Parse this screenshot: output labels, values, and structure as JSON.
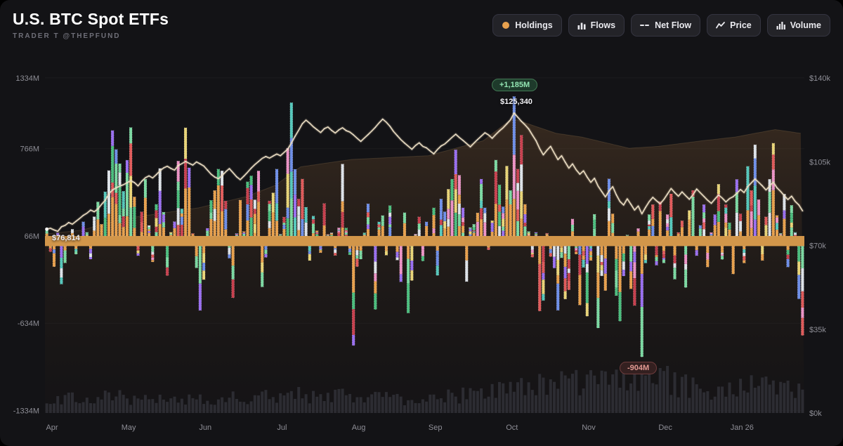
{
  "header": {
    "title": "U.S. BTC Spot ETFs",
    "subtitle": "TRADER T @THEPFUND"
  },
  "toolbar": {
    "buttons": [
      {
        "label": "Holdings",
        "icon": "holdings-dot-icon",
        "icon_color": "#E8A14E"
      },
      {
        "label": "Flows",
        "icon": "flows-bars-icon"
      },
      {
        "label": "Net Flow",
        "icon": "netflow-dash-icon"
      },
      {
        "label": "Price",
        "icon": "price-line-icon"
      },
      {
        "label": "Volume",
        "icon": "volume-bars-icon"
      }
    ]
  },
  "annotations": {
    "flow_max": "+1,185M",
    "price_peak": "$125,340",
    "price_start": "$76,814",
    "flow_min": "-904M"
  },
  "chart_data": {
    "type": "mixed",
    "title": "U.S. BTC Spot ETFs — daily net flows (stacked bars, $M), BTC price (line, $k), cumulative holdings (area), trading volume (bottom bars)",
    "x_ticks": [
      {
        "i": 0,
        "label": "Apr"
      },
      {
        "i": 21,
        "label": "May"
      },
      {
        "i": 42,
        "label": "Jun"
      },
      {
        "i": 63,
        "label": "Jul"
      },
      {
        "i": 84,
        "label": "Aug"
      },
      {
        "i": 105,
        "label": "Sep"
      },
      {
        "i": 126,
        "label": "Oct"
      },
      {
        "i": 147,
        "label": "Nov"
      },
      {
        "i": 168,
        "label": "Dec"
      },
      {
        "i": 189,
        "label": "Jan 26"
      }
    ],
    "y_left_ticks": [
      {
        "v": 1334,
        "label": "1334M"
      },
      {
        "v": 766,
        "label": "766M"
      },
      {
        "v": 66,
        "label": "66M"
      },
      {
        "v": -634,
        "label": "-634M"
      },
      {
        "v": -1334,
        "label": "-1334M"
      }
    ],
    "y_right_ticks": [
      {
        "v": 140,
        "label": "$140k"
      },
      {
        "v": 105,
        "label": "$105k"
      },
      {
        "v": 70,
        "label": "$70k"
      },
      {
        "v": 35,
        "label": "$35k"
      },
      {
        "v": 0,
        "label": "$0k"
      }
    ],
    "flow_max_musd": 1185,
    "flow_min_musd": -904,
    "price_peak_usd": 125340,
    "price_start_usd": 76814,
    "flows_musd": [
      110,
      -60,
      -180,
      90,
      -320,
      -150,
      40,
      120,
      -80,
      60,
      180,
      95,
      -120,
      220,
      340,
      160,
      420,
      591,
      912,
      760,
      646,
      425,
      674,
      936,
      380,
      -92,
      260,
      521,
      150,
      -142,
      320,
      608,
      257,
      -252,
      96,
      181,
      667,
      284,
      934,
      613,
      86,
      -190,
      -531,
      -284,
      128,
      352,
      431,
      602,
      589,
      347,
      -112,
      -430,
      86,
      354,
      102,
      501,
      548,
      356,
      588,
      -342,
      -105,
      347,
      412,
      602,
      80,
      218,
      770,
      1135,
      601,
      363,
      523,
      297,
      -131,
      226,
      108,
      -68,
      327,
      80,
      91,
      -90,
      131,
      643,
      130,
      -85,
      -812,
      -180,
      -120,
      91,
      324,
      65,
      -523,
      179,
      230,
      -88,
      310,
      65,
      -127,
      -301,
      253,
      -552,
      -291,
      81,
      219,
      -135,
      179,
      23,
      292,
      -250,
      363,
      260,
      441,
      522,
      757,
      553,
      292,
      -300,
      134,
      160,
      251,
      522,
      292,
      -45,
      189,
      675,
      476,
      300,
      627,
      431,
      1185,
      602,
      875,
      320,
      102,
      -104,
      95,
      -536,
      -451,
      88,
      -99,
      -191,
      -530,
      -109,
      -440,
      -366,
      202,
      -79,
      -488,
      -186,
      -577,
      -131,
      240,
      -672,
      -254,
      -372,
      524,
      244,
      -413,
      -617,
      -255,
      74,
      -358,
      -492,
      126,
      -904,
      -151,
      238,
      318,
      -168,
      342,
      -150,
      238,
      404,
      -281,
      94,
      188,
      -347,
      271,
      432,
      -92,
      151,
      318,
      -183,
      94,
      238,
      481,
      -122,
      318,
      172,
      -239,
      520,
      244,
      -151,
      625,
      431,
      798,
      358,
      -131,
      219,
      521,
      810,
      231,
      88,
      402,
      -183,
      312,
      95,
      -438,
      -731
    ],
    "price_kusd": [
      76.81,
      77.2,
      76.5,
      75.9,
      77.8,
      78.4,
      79.6,
      78.9,
      80.1,
      81.3,
      82.6,
      83.5,
      84.8,
      84.1,
      85.3,
      87.2,
      88.9,
      91.5,
      93.2,
      94.1,
      94.8,
      95.4,
      96.2,
      97.1,
      96.3,
      94.9,
      96.8,
      98.3,
      99.1,
      98.2,
      99.6,
      101.2,
      102.4,
      103.1,
      102.2,
      101.5,
      103.4,
      104.2,
      105.1,
      104.3,
      103.6,
      104.9,
      104.1,
      103.2,
      101.5,
      99.8,
      98.6,
      97.9,
      99.2,
      100.8,
      102.1,
      100.4,
      98.7,
      97.5,
      99.0,
      100.6,
      102.3,
      103.8,
      105.1,
      106.4,
      107.2,
      106.5,
      107.4,
      108.2,
      107.5,
      108.9,
      110.3,
      112.8,
      115.6,
      118.2,
      120.9,
      122.4,
      121.1,
      119.6,
      118.4,
      117.2,
      118.8,
      119.5,
      118.1,
      117.0,
      118.3,
      119.2,
      118.0,
      117.4,
      116.2,
      114.8,
      113.5,
      114.9,
      116.3,
      117.8,
      119.4,
      121.2,
      122.8,
      121.5,
      119.8,
      117.6,
      115.9,
      114.2,
      112.8,
      111.5,
      110.2,
      111.8,
      112.9,
      111.4,
      110.8,
      109.5,
      108.3,
      110.1,
      111.6,
      112.4,
      113.8,
      115.2,
      116.5,
      115.1,
      113.9,
      112.6,
      111.2,
      112.8,
      114.3,
      115.7,
      117.1,
      116.2,
      114.8,
      116.4,
      117.9,
      119.2,
      120.8,
      122.5,
      125.34,
      123.6,
      121.9,
      120.4,
      118.7,
      116.2,
      113.8,
      110.5,
      107.9,
      109.8,
      111.4,
      108.6,
      105.9,
      107.5,
      104.8,
      102.3,
      104.1,
      101.6,
      99.8,
      101.2,
      98.6,
      96.4,
      98.1,
      94.8,
      92.5,
      90.3,
      92.8,
      94.6,
      91.2,
      88.4,
      86.9,
      89.5,
      87.2,
      84.8,
      86.5,
      83.2,
      85.9,
      88.3,
      90.1,
      88.7,
      87.4,
      89.2,
      91.5,
      93.8,
      92.1,
      90.6,
      92.4,
      90.8,
      89.3,
      91.2,
      93.6,
      92.0,
      90.5,
      88.9,
      87.6,
      89.4,
      91.1,
      89.8,
      88.2,
      89.6,
      90.4,
      91.8,
      93.4,
      92.1,
      94.6,
      96.2,
      97.8,
      96.4,
      94.9,
      93.2,
      94.8,
      96.5,
      94.1,
      92.6,
      90.8,
      89.2,
      90.6,
      88.4,
      86.9,
      84.5
    ],
    "holdings_anchors": [
      [
        0,
        96
      ],
      [
        10,
        98
      ],
      [
        21,
        104
      ],
      [
        42,
        110
      ],
      [
        55,
        116
      ],
      [
        63,
        122
      ],
      [
        70,
        132
      ],
      [
        84,
        136
      ],
      [
        105,
        138
      ],
      [
        120,
        146
      ],
      [
        128,
        158
      ],
      [
        140,
        150
      ],
      [
        147,
        148
      ],
      [
        160,
        142
      ],
      [
        168,
        143
      ],
      [
        180,
        146
      ],
      [
        189,
        148
      ],
      [
        200,
        152
      ],
      [
        207,
        150
      ]
    ],
    "volume_anchors": [
      [
        0,
        30
      ],
      [
        15,
        38
      ],
      [
        30,
        26
      ],
      [
        45,
        30
      ],
      [
        60,
        34
      ],
      [
        75,
        40
      ],
      [
        90,
        32
      ],
      [
        105,
        30
      ],
      [
        120,
        42
      ],
      [
        128,
        55
      ],
      [
        140,
        60
      ],
      [
        150,
        72
      ],
      [
        163,
        85
      ],
      [
        175,
        55
      ],
      [
        185,
        45
      ],
      [
        195,
        60
      ],
      [
        207,
        50
      ]
    ],
    "palette": [
      "#7CD9A2",
      "#7CD9A2",
      "#4CBE7E",
      "#E8A14E",
      "#E05B5B",
      "#6F8FE8",
      "#9A6FF0",
      "#E8D478",
      "#56C8BC",
      "#EC93C6",
      "#C8414F",
      "#DDE2E8"
    ],
    "colors": {
      "band": "#D2964A",
      "bar_base": "#E8A14E",
      "price": "#EADCC1",
      "volume": "#2C2C32",
      "holdings_top": "#7A5430",
      "holdings_bottom": "#241A12",
      "axis_text": "#8E8E96",
      "grid": "rgba(255,255,255,0.04)"
    }
  }
}
